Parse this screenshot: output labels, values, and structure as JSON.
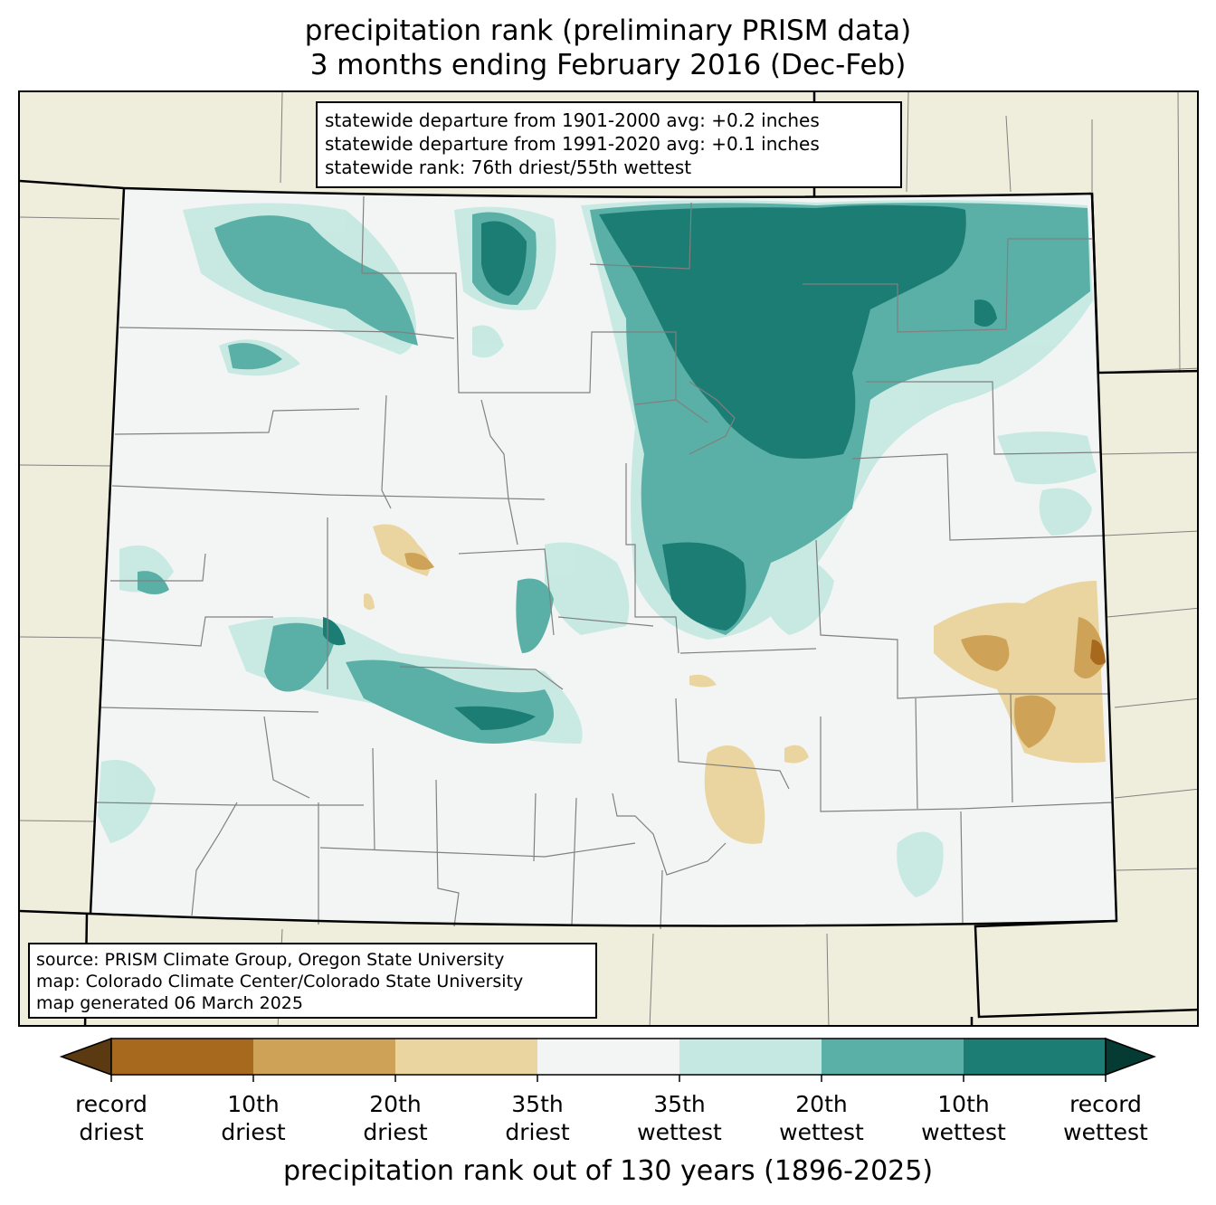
{
  "title": {
    "line1": "precipitation rank (preliminary PRISM data)",
    "line2": "3 months ending February 2016 (Dec-Feb)"
  },
  "stats_box": {
    "lines": [
      "statewide departure from 1901-2000 avg: +0.2 inches",
      "statewide departure from 1991-2020 avg: +0.1 inches",
      "statewide rank: 76th driest/55th wettest"
    ]
  },
  "source_box": {
    "lines": [
      "source: PRISM Climate Group, Oregon State University",
      "map: Colorado Climate Center/Colorado State University",
      "map generated 06 March 2025"
    ]
  },
  "map": {
    "background_color": "#efeedc",
    "state_fill": "#f3f5f4",
    "county_line_color": "#808080",
    "boundary_color": "#000000"
  },
  "colorbar": {
    "label": "precipitation rank out of 130 years (1896-2025)",
    "extend_low_color": "#5b3a12",
    "extend_high_color": "#053b33",
    "bins": [
      {
        "color": "#a6691d"
      },
      {
        "color": "#cfa357"
      },
      {
        "color": "#ead5a1"
      },
      {
        "color": "#f3f5f4"
      },
      {
        "color": "#c5e9e2"
      },
      {
        "color": "#5ab0a6"
      },
      {
        "color": "#1b7d74"
      }
    ],
    "ticks": [
      {
        "line1": "record",
        "line2": "driest"
      },
      {
        "line1": "10th",
        "line2": "driest"
      },
      {
        "line1": "20th",
        "line2": "driest"
      },
      {
        "line1": "35th",
        "line2": "driest"
      },
      {
        "line1": "35th",
        "line2": "wettest"
      },
      {
        "line1": "20th",
        "line2": "wettest"
      },
      {
        "line1": "10th",
        "line2": "wettest"
      },
      {
        "line1": "record",
        "line2": "wettest"
      }
    ]
  }
}
